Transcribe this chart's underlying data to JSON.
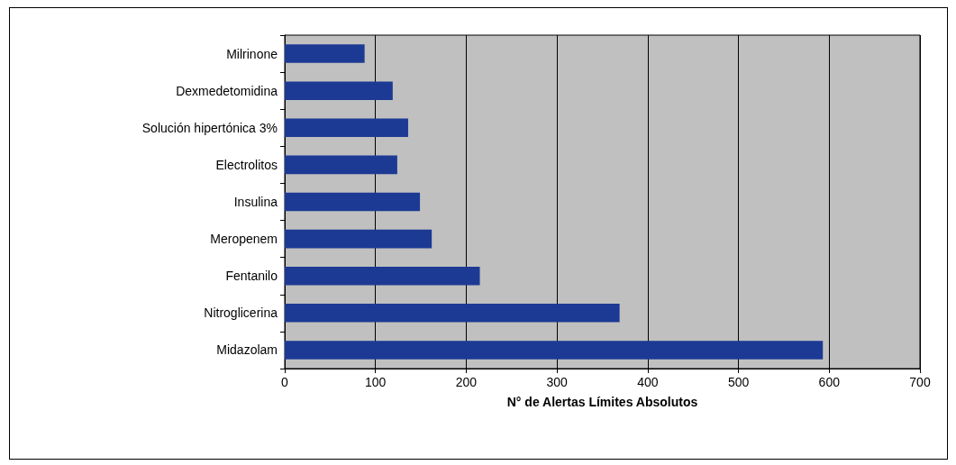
{
  "chart_data": {
    "type": "bar",
    "orientation": "horizontal",
    "xlabel": "N° de Alertas Límites Absolutos",
    "categories": [
      "Milrinone",
      "Dexmedetomidina",
      "Solución hipertónica 3%",
      "Electrolitos",
      "Insulina",
      "Meropenem",
      "Fentanilo",
      "Nitroglicerina",
      "Midazolam"
    ],
    "values": [
      88,
      119,
      136,
      124,
      149,
      162,
      215,
      369,
      593
    ],
    "color": "#1c3a94",
    "xlim": [
      0,
      700
    ],
    "xticks": [
      0,
      100,
      200,
      300,
      400,
      500,
      600,
      700
    ],
    "grid": "x"
  }
}
